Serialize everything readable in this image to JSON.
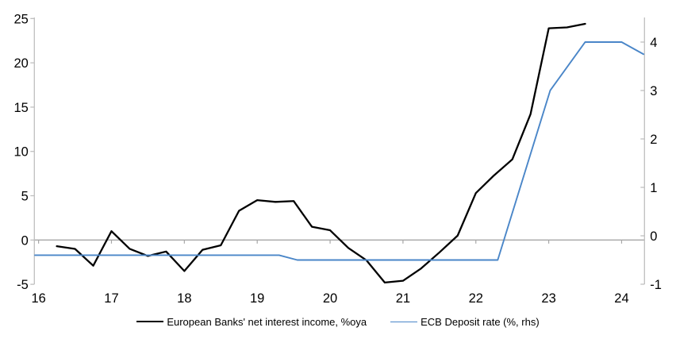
{
  "chart_data": {
    "type": "line",
    "title": "",
    "legend_position": "bottom",
    "grid": "zero-line-only",
    "series": [
      {
        "name": "European Banks' net interest income, %oya",
        "axis": "left",
        "color": "#000000",
        "line_width": 2.3,
        "x": [
          16.25,
          16.5,
          16.75,
          17.0,
          17.25,
          17.5,
          17.75,
          18.0,
          18.25,
          18.5,
          18.75,
          19.0,
          19.25,
          19.5,
          19.75,
          20.0,
          20.25,
          20.5,
          20.75,
          21.0,
          21.25,
          21.5,
          21.75,
          22.0,
          22.25,
          22.5,
          22.75,
          23.0,
          23.25,
          23.5
        ],
        "values": [
          -0.7,
          -1.0,
          -2.9,
          1.0,
          -1.0,
          -1.8,
          -1.3,
          -3.5,
          -1.1,
          -0.6,
          3.3,
          4.5,
          4.3,
          4.4,
          1.5,
          1.1,
          -0.9,
          -2.3,
          -4.8,
          -4.6,
          -3.2,
          -1.4,
          0.5,
          5.3,
          7.3,
          9.1,
          14.2,
          23.9,
          24.0,
          24.4
        ]
      },
      {
        "name": "ECB Deposit rate (%, rhs)",
        "axis": "right",
        "color": "#4a86c8",
        "line_width": 1.9,
        "x": [
          15.95,
          19.3,
          19.55,
          22.3,
          23.02,
          23.5,
          24.0,
          24.3
        ],
        "values": [
          -0.4,
          -0.4,
          -0.5,
          -0.5,
          3.0,
          4.0,
          4.0,
          3.75
        ]
      }
    ],
    "left_axis": {
      "ticks": [
        25,
        20,
        15,
        10,
        5,
        0,
        -5
      ],
      "range": [
        -4.99,
        25.12
      ]
    },
    "right_axis": {
      "ticks": [
        4,
        3,
        2,
        1,
        0,
        -1
      ],
      "range": [
        -1.0,
        4.508
      ]
    },
    "x_axis": {
      "tick_labels": [
        "16",
        "17",
        "18",
        "19",
        "20",
        "21",
        "22",
        "23",
        "24"
      ],
      "tick_values": [
        16,
        17,
        18,
        19,
        20,
        21,
        22,
        23,
        24
      ],
      "range": [
        15.942,
        24.314
      ]
    },
    "colors": {
      "axis_line": "#bfbfbf",
      "zero_line": "#a6a6a6",
      "x_tick": "#a6a6a6",
      "text": "#000000"
    }
  }
}
